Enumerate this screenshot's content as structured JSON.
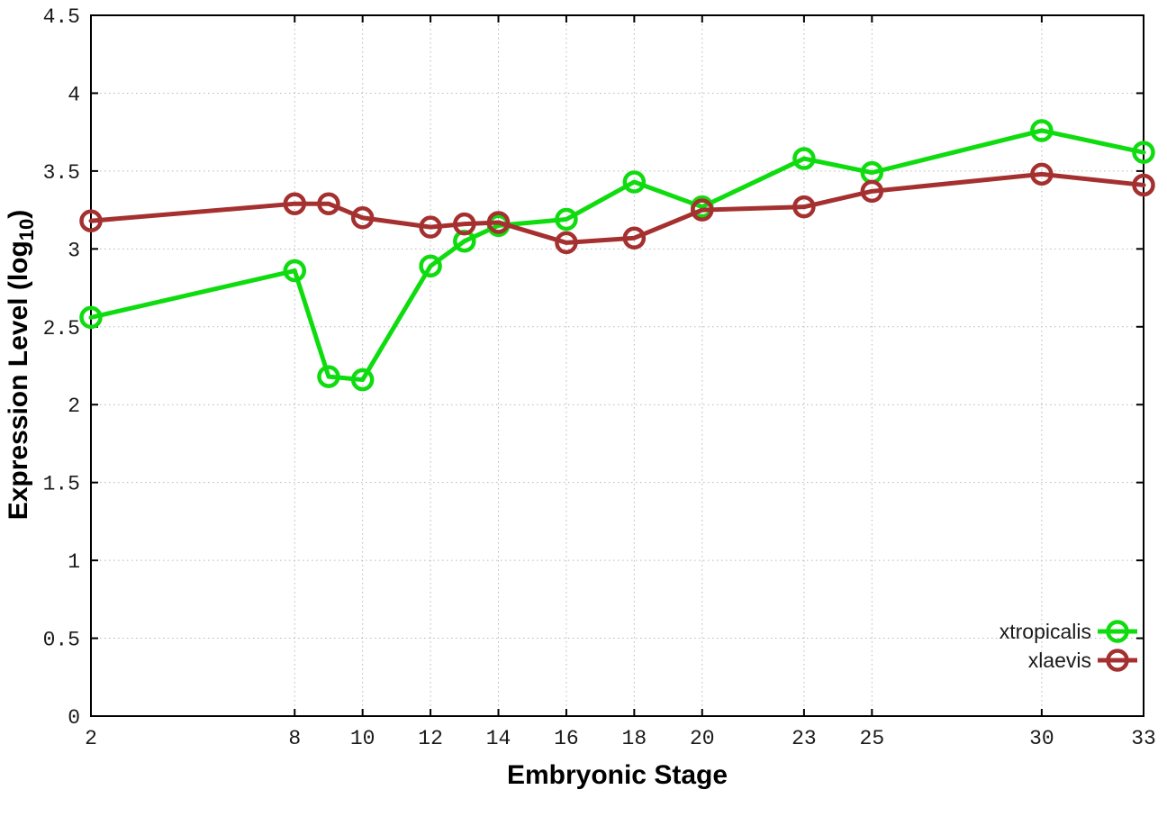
{
  "figure": {
    "background": "#ffffff",
    "border_color": "#000000",
    "grid_color": "#b8b8b8",
    "tick_color": "#000000"
  },
  "chart_data": {
    "type": "line",
    "title": "",
    "xlabel": "Embryonic Stage",
    "ylabel": "Expression Level (log10)",
    "ylabel_parts": {
      "pre": "Expression Level (log",
      "sub": "10",
      "post": ")"
    },
    "xlim": [
      2,
      33
    ],
    "ylim": [
      0,
      4.5
    ],
    "grid": true,
    "legend_position": "bottom-right",
    "x_ticks": [
      2,
      8,
      10,
      12,
      14,
      16,
      18,
      20,
      23,
      25,
      30,
      33
    ],
    "x_tick_labels": [
      "2",
      "8",
      "10",
      "12",
      "14",
      "16",
      "18",
      "20",
      "23",
      "25",
      "30",
      "33"
    ],
    "y_ticks": [
      0,
      0.5,
      1,
      1.5,
      2,
      2.5,
      3,
      3.5,
      4,
      4.5
    ],
    "y_tick_labels": [
      "0",
      "0.5",
      "1",
      "1.5",
      "2",
      "2.5",
      "3",
      "3.5",
      "4",
      "4.5"
    ],
    "x": [
      2,
      8,
      9,
      10,
      12,
      13,
      14,
      16,
      18,
      20,
      23,
      25,
      30,
      33
    ],
    "series": [
      {
        "name": "xtropicalis",
        "color": "#0fdc0f",
        "marker": "open-circle",
        "values": [
          2.56,
          2.86,
          2.18,
          2.16,
          2.89,
          3.05,
          3.15,
          3.19,
          3.43,
          3.27,
          3.58,
          3.49,
          3.76,
          3.62
        ]
      },
      {
        "name": "xlaevis",
        "color": "#a53030",
        "marker": "open-circle",
        "values": [
          3.18,
          3.29,
          3.29,
          3.2,
          3.14,
          3.16,
          3.17,
          3.04,
          3.07,
          3.25,
          3.27,
          3.37,
          3.48,
          3.41
        ]
      }
    ]
  }
}
